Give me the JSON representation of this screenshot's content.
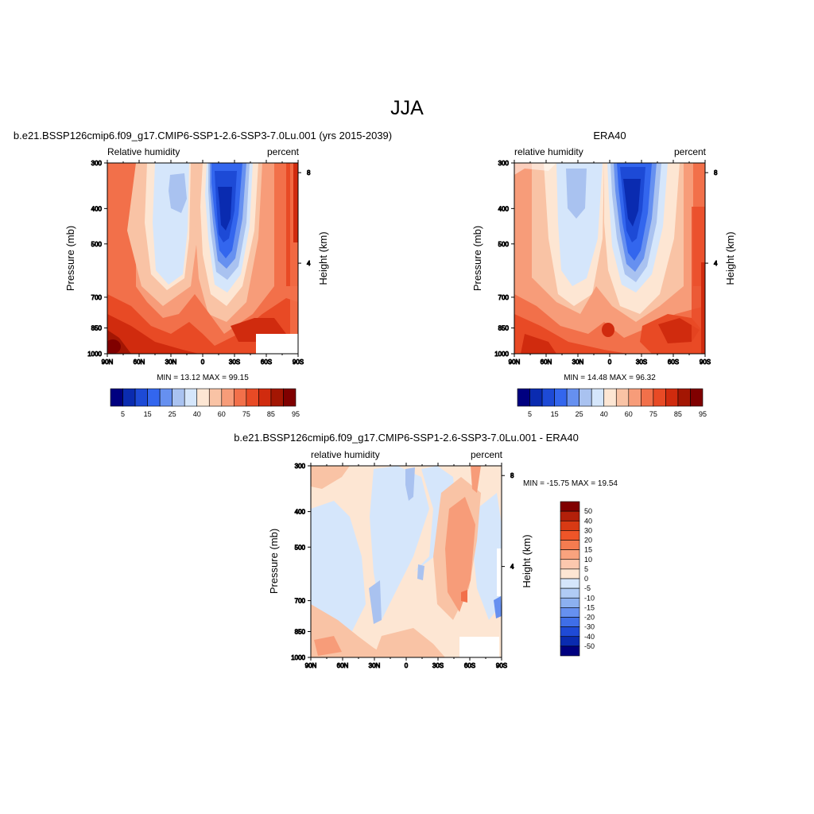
{
  "figure": {
    "title": "JJA"
  },
  "panels": [
    {
      "id": "model",
      "subtitle": "b.e21.BSSP126cmip6.f09_g17.CMIP6-SSP1-2.6-SSP3-7.0Lu.001 (yrs 2015-2039)",
      "left_label": "Relative humidity",
      "right_label": "percent",
      "ylabel": "Pressure (mb)",
      "y2label": "Height (km)",
      "stats": "MIN =  13.12  MAX =  99.15"
    },
    {
      "id": "obs",
      "subtitle": "ERA40",
      "left_label": "relative humidity",
      "right_label": "percent",
      "ylabel": "Pressure (mb)",
      "y2label": "Height (km)",
      "stats": "MIN =  14.48  MAX =  96.32"
    },
    {
      "id": "diff",
      "subtitle": "b.e21.BSSP126cmip6.f09_g17.CMIP6-SSP1-2.6-SSP3-7.0Lu.001 - ERA40",
      "left_label": "relative humidity",
      "right_label": "percent",
      "ylabel": "Pressure (mb)",
      "y2label": "Height (km)",
      "stats": "MIN = -15.75  MAX =  19.54"
    }
  ],
  "chart_data": [
    {
      "type": "heatmap",
      "title": "b.e21.BSSP126cmip6.f09_g17.CMIP6-SSP1-2.6-SSP3-7.0Lu.001 (yrs 2015-2039)",
      "variable": "Relative humidity",
      "units": "percent",
      "x_ticks": [
        "90N",
        "60N",
        "30N",
        "0",
        "30S",
        "60S",
        "90S"
      ],
      "y_ticks": [
        "300",
        "400",
        "500",
        "700",
        "850",
        "1000"
      ],
      "y2_ticks": [
        "8",
        "4"
      ],
      "xlabel": "",
      "ylabel": "Pressure (mb)",
      "y2label": "Height (km)",
      "xlim": [
        "90N",
        "90S"
      ],
      "ylim": [
        1000,
        300
      ],
      "yscale": "log",
      "min": 13.12,
      "max": 99.15,
      "colorbar": {
        "orientation": "horizontal",
        "labels": [
          "5",
          "15",
          "25",
          "40",
          "60",
          "75",
          "85",
          "95"
        ],
        "colors": [
          "#000080",
          "#0a2bb0",
          "#1d4ad6",
          "#3366ee",
          "#6690f0",
          "#a9c2f0",
          "#d5e6fb",
          "#fde6d3",
          "#f9c3a5",
          "#f79c79",
          "#f2704a",
          "#e84a25",
          "#d02b0e",
          "#a31603",
          "#800000"
        ]
      },
      "grid": false
    },
    {
      "type": "heatmap",
      "title": "ERA40",
      "variable": "relative humidity",
      "units": "percent",
      "x_ticks": [
        "90N",
        "60N",
        "30N",
        "0",
        "30S",
        "60S",
        "90S"
      ],
      "y_ticks": [
        "300",
        "400",
        "500",
        "700",
        "850",
        "1000"
      ],
      "y2_ticks": [
        "8",
        "4"
      ],
      "xlabel": "",
      "ylabel": "Pressure (mb)",
      "y2label": "Height (km)",
      "xlim": [
        "90N",
        "90S"
      ],
      "ylim": [
        1000,
        300
      ],
      "yscale": "log",
      "min": 14.48,
      "max": 96.32,
      "colorbar": {
        "orientation": "horizontal",
        "labels": [
          "5",
          "15",
          "25",
          "40",
          "60",
          "75",
          "85",
          "95"
        ],
        "colors": [
          "#000080",
          "#0a2bb0",
          "#1d4ad6",
          "#3366ee",
          "#6690f0",
          "#a9c2f0",
          "#d5e6fb",
          "#fde6d3",
          "#f9c3a5",
          "#f79c79",
          "#f2704a",
          "#e84a25",
          "#d02b0e",
          "#a31603",
          "#800000"
        ]
      },
      "grid": false
    },
    {
      "type": "heatmap",
      "title": "b.e21.BSSP126cmip6.f09_g17.CMIP6-SSP1-2.6-SSP3-7.0Lu.001 - ERA40",
      "variable": "relative humidity",
      "units": "percent",
      "x_ticks": [
        "90N",
        "60N",
        "30N",
        "0",
        "30S",
        "60S",
        "90S"
      ],
      "y_ticks": [
        "300",
        "400",
        "500",
        "700",
        "850",
        "1000"
      ],
      "y2_ticks": [
        "8",
        "4"
      ],
      "xlabel": "",
      "ylabel": "Pressure (mb)",
      "y2label": "Height (km)",
      "xlim": [
        "90N",
        "90S"
      ],
      "ylim": [
        1000,
        300
      ],
      "yscale": "log",
      "min": -15.75,
      "max": 19.54,
      "colorbar": {
        "orientation": "vertical",
        "labels": [
          "50",
          "40",
          "30",
          "20",
          "15",
          "10",
          "5",
          "0",
          "-5",
          "-10",
          "-15",
          "-20",
          "-30",
          "-40",
          "-50"
        ],
        "colors": [
          "#800000",
          "#b3200a",
          "#d83a14",
          "#ee5528",
          "#f57c50",
          "#f9a37e",
          "#fcc8ae",
          "#fde6d3",
          "#d5e6fb",
          "#b0cbf5",
          "#8cb0f0",
          "#6690f0",
          "#3f6ee8",
          "#1f4ad6",
          "#0a2bb0",
          "#000080"
        ]
      },
      "grid": false
    }
  ]
}
